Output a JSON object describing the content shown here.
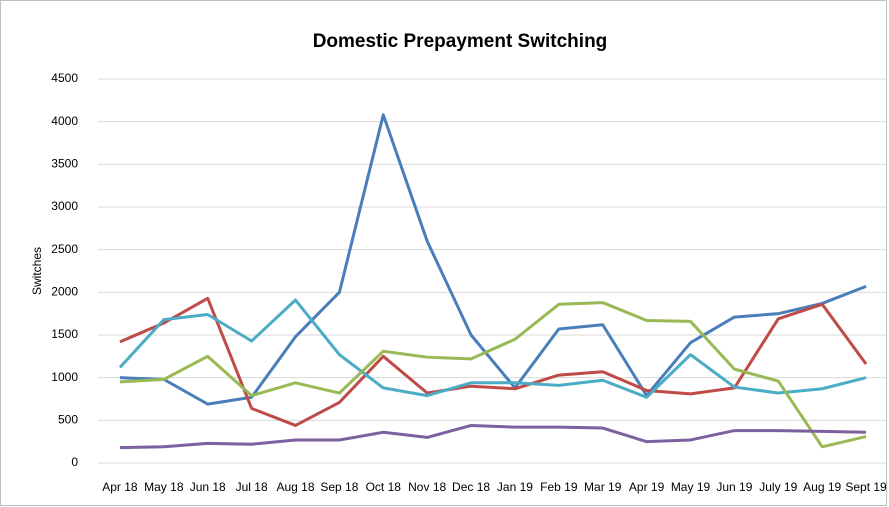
{
  "chart_data": {
    "type": "line",
    "title": "Domestic Prepayment Switching",
    "y_label": "Switches",
    "categories": [
      "Apr 18",
      "May 18",
      "Jun 18",
      "Jul 18",
      "Aug 18",
      "Sep 18",
      "Oct 18",
      "Nov 18",
      "Dec 18",
      "Jan 19",
      "Feb 19",
      "Mar 19",
      "Apr 19",
      "May 19",
      "Jun 19",
      "July 19",
      "Aug 19",
      "Sept 19"
    ],
    "series": [
      {
        "color": "#4a7ebb",
        "values": [
          1000,
          980,
          690,
          770,
          1480,
          2000,
          4080,
          2600,
          1500,
          880,
          1570,
          1620,
          790,
          1410,
          1710,
          1750,
          1870,
          2070
        ]
      },
      {
        "color": "#be4b48",
        "values": [
          1420,
          1640,
          1930,
          640,
          440,
          710,
          1250,
          820,
          900,
          870,
          1030,
          1070,
          850,
          810,
          880,
          1690,
          1860,
          1160
        ]
      },
      {
        "color": "#4bacc6",
        "values": [
          1120,
          1680,
          1740,
          1430,
          1910,
          1270,
          880,
          790,
          940,
          940,
          910,
          970,
          770,
          1270,
          890,
          820,
          870,
          1000
        ]
      },
      {
        "color": "#98b954",
        "values": [
          950,
          980,
          1250,
          790,
          940,
          820,
          1310,
          1240,
          1220,
          1450,
          1860,
          1880,
          1670,
          1660,
          1100,
          960,
          190,
          310
        ]
      },
      {
        "color": "#7d60a0",
        "values": [
          180,
          190,
          230,
          220,
          270,
          270,
          360,
          300,
          440,
          420,
          420,
          410,
          250,
          270,
          380,
          380,
          370,
          360
        ]
      }
    ],
    "ylim": [
      0,
      4500
    ],
    "yticks": [
      0,
      500,
      1000,
      1500,
      2000,
      2500,
      3000,
      3500,
      4000,
      4500
    ],
    "grid": true
  }
}
